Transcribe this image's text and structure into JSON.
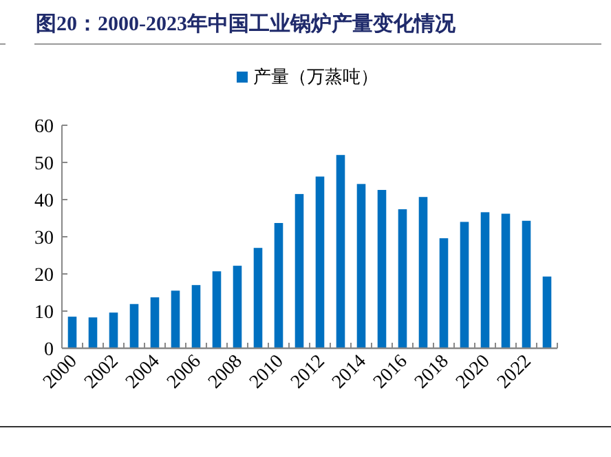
{
  "chart_data": {
    "type": "bar",
    "title": "图20：2000-2023年中国工业锅炉产量变化情况",
    "categories": [
      "2000",
      null,
      "2002",
      null,
      "2004",
      null,
      "2006",
      null,
      "2008",
      null,
      "2010",
      null,
      "2012",
      null,
      "2014",
      null,
      "2016",
      null,
      "2018",
      null,
      "2020",
      null,
      "2022",
      null
    ],
    "series": [
      {
        "name": "产量（万蒸吨）",
        "color": "#0070c0",
        "values": [
          8.5,
          8.3,
          9.6,
          11.9,
          13.7,
          15.5,
          17,
          20.7,
          22.2,
          27,
          33.7,
          41.5,
          46.2,
          52,
          44.2,
          42.6,
          37.4,
          40.7,
          29.6,
          34,
          36.6,
          36.2,
          34.3,
          19.3
        ]
      }
    ],
    "ylim": [
      0,
      60
    ],
    "yticks": [
      0,
      10,
      20,
      30,
      40,
      50,
      60
    ],
    "grid": false,
    "legend": "top"
  }
}
